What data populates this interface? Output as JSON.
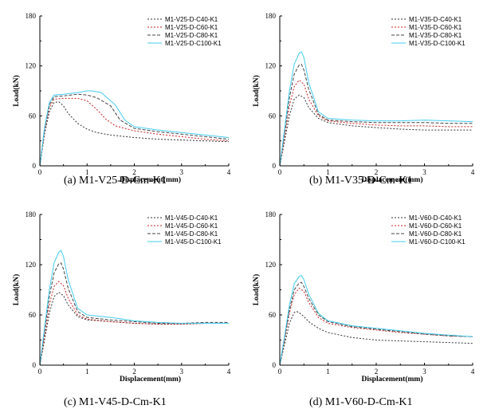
{
  "chart_data": [
    {
      "type": "line",
      "caption": "(a) M1-V25-D-Cm-K1",
      "xlabel": "Displacement(mm)",
      "ylabel": "Load(kN)",
      "xlim": [
        0,
        4
      ],
      "ylim": [
        0,
        180
      ],
      "xticks": [
        0,
        1,
        2,
        3,
        4
      ],
      "yticks": [
        0,
        60,
        120,
        180
      ],
      "legend_position": "top-right",
      "series": [
        {
          "name": "M1-V25-D-C40-K1",
          "color": "#333333",
          "dash": "2,2",
          "x": [
            0,
            0.1,
            0.2,
            0.3,
            0.4,
            0.5,
            0.6,
            0.8,
            1.0,
            1.2,
            1.5,
            2.0,
            2.5,
            3.0,
            3.5,
            4.0
          ],
          "y": [
            0,
            38,
            65,
            76,
            77,
            72,
            63,
            51,
            44,
            40,
            37,
            34,
            32,
            31,
            30,
            29
          ]
        },
        {
          "name": "M1-V25-D-C60-K1",
          "color": "#cc2222",
          "dash": "2,2",
          "x": [
            0,
            0.1,
            0.2,
            0.3,
            0.5,
            0.8,
            1.0,
            1.2,
            1.4,
            1.6,
            2.0,
            2.5,
            3.0,
            3.5,
            4.0
          ],
          "y": [
            0,
            42,
            70,
            80,
            81,
            81,
            78,
            68,
            56,
            48,
            42,
            38,
            35,
            32,
            30
          ]
        },
        {
          "name": "M1-V25-D-C80-K1",
          "color": "#444444",
          "dash": "4,2",
          "x": [
            0,
            0.1,
            0.2,
            0.3,
            0.5,
            0.8,
            1.0,
            1.2,
            1.5,
            1.7,
            2.0,
            2.5,
            3.0,
            3.5,
            4.0
          ],
          "y": [
            0,
            44,
            73,
            83,
            84,
            86,
            85,
            82,
            72,
            55,
            45,
            41,
            38,
            35,
            32
          ]
        },
        {
          "name": "M1-V25-D-C100-K1",
          "color": "#44ccee",
          "dash": "",
          "x": [
            0,
            0.1,
            0.2,
            0.3,
            0.5,
            0.8,
            1.0,
            1.1,
            1.3,
            1.6,
            1.8,
            2.0,
            2.5,
            3.0,
            3.5,
            4.0
          ],
          "y": [
            0,
            46,
            76,
            85,
            86,
            88,
            90,
            90,
            88,
            73,
            55,
            47,
            43,
            40,
            37,
            34
          ]
        }
      ]
    },
    {
      "type": "line",
      "caption": "(b) M1-V35-D-Cm-K1",
      "xlabel": "Displacement(mm)",
      "ylabel": "Load(kN)",
      "xlim": [
        0,
        4
      ],
      "ylim": [
        0,
        180
      ],
      "xticks": [
        0,
        1,
        2,
        3,
        4
      ],
      "yticks": [
        0,
        60,
        120,
        180
      ],
      "legend_position": "top-right",
      "series": [
        {
          "name": "M1-V35-D-C40-K1",
          "color": "#333333",
          "dash": "2,2",
          "x": [
            0,
            0.1,
            0.2,
            0.3,
            0.4,
            0.5,
            0.6,
            0.8,
            1.0,
            1.5,
            2.0,
            2.5,
            3.0,
            3.5,
            4.0
          ],
          "y": [
            0,
            30,
            60,
            80,
            85,
            82,
            70,
            57,
            52,
            48,
            46,
            44,
            43,
            43,
            43
          ]
        },
        {
          "name": "M1-V35-D-C60-K1",
          "color": "#cc2222",
          "dash": "2,2",
          "x": [
            0,
            0.1,
            0.2,
            0.3,
            0.4,
            0.5,
            0.6,
            0.8,
            1.0,
            1.5,
            2.0,
            2.5,
            3.0,
            3.5,
            4.0
          ],
          "y": [
            0,
            35,
            72,
            95,
            103,
            98,
            80,
            60,
            54,
            51,
            49,
            48,
            48,
            47,
            47
          ]
        },
        {
          "name": "M1-V35-D-C80-K1",
          "color": "#444444",
          "dash": "4,2",
          "x": [
            0,
            0.1,
            0.2,
            0.3,
            0.4,
            0.45,
            0.5,
            0.6,
            0.8,
            1.0,
            1.5,
            2.0,
            2.5,
            3.0,
            3.5,
            4.0
          ],
          "y": [
            0,
            40,
            82,
            110,
            121,
            122,
            115,
            92,
            62,
            55,
            53,
            52,
            52,
            52,
            51,
            51
          ]
        },
        {
          "name": "M1-V35-D-C100-K1",
          "color": "#44ccee",
          "dash": "",
          "x": [
            0,
            0.1,
            0.2,
            0.3,
            0.4,
            0.45,
            0.5,
            0.6,
            0.8,
            1.0,
            1.5,
            2.0,
            2.5,
            3.0,
            3.5,
            4.0
          ],
          "y": [
            0,
            45,
            90,
            122,
            135,
            137,
            130,
            100,
            65,
            57,
            55,
            54,
            54,
            55,
            54,
            53
          ]
        }
      ]
    },
    {
      "type": "line",
      "caption": "(c) M1-V45-D-Cm-K1",
      "xlabel": "Displacement(mm)",
      "ylabel": "Load(kN)",
      "xlim": [
        0,
        4
      ],
      "ylim": [
        0,
        180
      ],
      "xticks": [
        0,
        1,
        2,
        3,
        4
      ],
      "yticks": [
        0,
        60,
        120,
        180
      ],
      "legend_position": "top-right",
      "series": [
        {
          "name": "M1-V45-D-C40-K1",
          "color": "#333333",
          "dash": "2,2",
          "x": [
            0,
            0.1,
            0.2,
            0.3,
            0.4,
            0.5,
            0.6,
            0.8,
            1.0,
            1.5,
            2.0,
            2.5,
            3.0,
            3.5,
            4.0
          ],
          "y": [
            0,
            30,
            62,
            82,
            87,
            83,
            72,
            58,
            54,
            52,
            50,
            49,
            49,
            50,
            50
          ]
        },
        {
          "name": "M1-V45-D-C60-K1",
          "color": "#cc2222",
          "dash": "2,2",
          "x": [
            0,
            0.1,
            0.2,
            0.3,
            0.4,
            0.5,
            0.6,
            0.8,
            1.0,
            1.5,
            2.0,
            2.5,
            3.0,
            3.5,
            4.0
          ],
          "y": [
            0,
            35,
            72,
            94,
            100,
            95,
            80,
            60,
            55,
            52,
            50,
            49,
            49,
            50,
            50
          ]
        },
        {
          "name": "M1-V45-D-C80-K1",
          "color": "#444444",
          "dash": "4,2",
          "x": [
            0,
            0.1,
            0.2,
            0.3,
            0.4,
            0.45,
            0.5,
            0.6,
            0.8,
            1.0,
            1.5,
            2.0,
            2.5,
            3.0,
            3.5,
            4.0
          ],
          "y": [
            0,
            40,
            82,
            110,
            121,
            122,
            115,
            92,
            64,
            57,
            54,
            52,
            50,
            50,
            51,
            51
          ]
        },
        {
          "name": "M1-V45-D-C100-K1",
          "color": "#44ccee",
          "dash": "",
          "x": [
            0,
            0.1,
            0.2,
            0.3,
            0.4,
            0.45,
            0.5,
            0.6,
            0.8,
            1.0,
            1.5,
            2.0,
            2.5,
            3.0,
            3.5,
            4.0
          ],
          "y": [
            0,
            45,
            90,
            122,
            135,
            137,
            130,
            102,
            68,
            60,
            57,
            53,
            51,
            50,
            50,
            50
          ]
        }
      ]
    },
    {
      "type": "line",
      "caption": "(d) M1-V60-D-Cm-K1",
      "xlabel": "Displacement(mm)",
      "ylabel": "Load(kN)",
      "xlim": [
        0,
        4
      ],
      "ylim": [
        0,
        180
      ],
      "xticks": [
        0,
        1,
        2,
        3,
        4
      ],
      "yticks": [
        0,
        60,
        120,
        180
      ],
      "legend_position": "top-right",
      "series": [
        {
          "name": "M1-V60-D-C40-K1",
          "color": "#333333",
          "dash": "2,2",
          "x": [
            0,
            0.1,
            0.2,
            0.3,
            0.35,
            0.4,
            0.5,
            0.6,
            0.8,
            1.0,
            1.5,
            2.0,
            2.5,
            3.0,
            3.5,
            4.0
          ],
          "y": [
            0,
            25,
            50,
            63,
            64,
            63,
            58,
            52,
            44,
            39,
            33,
            30,
            29,
            28,
            27,
            26
          ]
        },
        {
          "name": "M1-V60-D-C60-K1",
          "color": "#cc2222",
          "dash": "2,2",
          "x": [
            0,
            0.1,
            0.2,
            0.3,
            0.4,
            0.5,
            0.6,
            0.8,
            1.0,
            1.5,
            2.0,
            2.5,
            3.0,
            3.5,
            4.0
          ],
          "y": [
            0,
            30,
            62,
            84,
            92,
            88,
            75,
            57,
            50,
            45,
            42,
            39,
            37,
            35,
            34
          ]
        },
        {
          "name": "M1-V60-D-C80-K1",
          "color": "#444444",
          "dash": "4,2",
          "x": [
            0,
            0.1,
            0.2,
            0.3,
            0.4,
            0.45,
            0.5,
            0.6,
            0.8,
            1.0,
            1.5,
            2.0,
            2.5,
            3.0,
            3.5,
            4.0
          ],
          "y": [
            0,
            32,
            66,
            90,
            98,
            99,
            94,
            80,
            60,
            52,
            46,
            43,
            40,
            37,
            35,
            34
          ]
        },
        {
          "name": "M1-V60-D-C100-K1",
          "color": "#44ccee",
          "dash": "",
          "x": [
            0,
            0.1,
            0.2,
            0.3,
            0.4,
            0.45,
            0.5,
            0.6,
            0.8,
            1.0,
            1.5,
            2.0,
            2.5,
            3.0,
            3.5,
            4.0
          ],
          "y": [
            0,
            35,
            72,
            97,
            106,
            107,
            102,
            85,
            62,
            53,
            47,
            44,
            41,
            38,
            36,
            34
          ]
        }
      ]
    }
  ]
}
